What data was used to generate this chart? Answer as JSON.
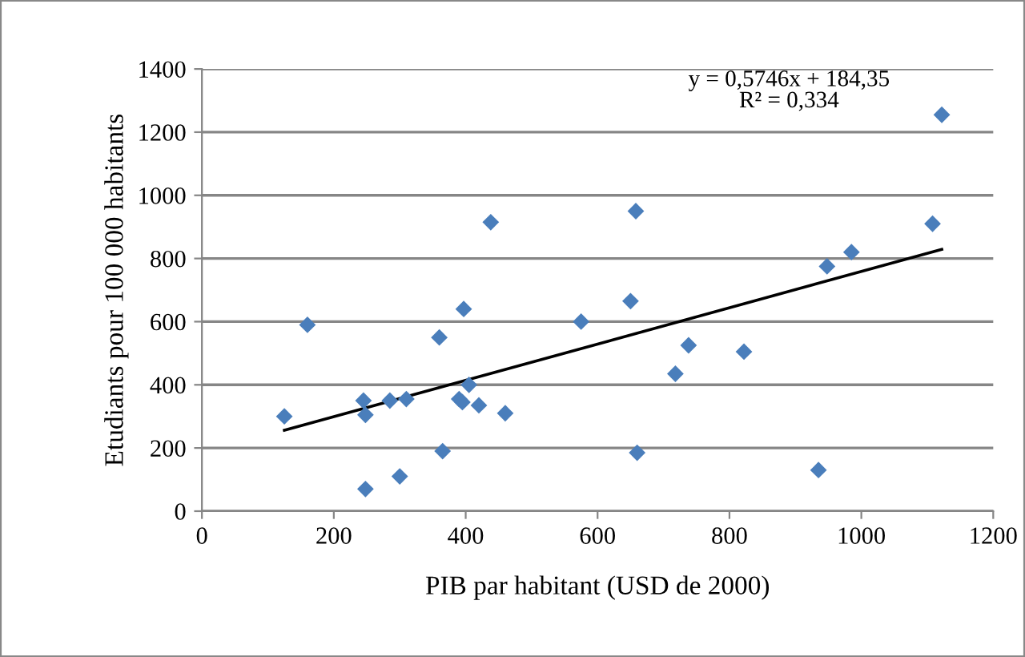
{
  "chart_data": {
    "type": "scatter",
    "xlabel": "PIB par habitant (USD de 2000)",
    "ylabel": "Etudiants pour 100 000 habitants",
    "xlim": [
      0,
      1200
    ],
    "xticks": [
      0,
      200,
      400,
      600,
      800,
      1000,
      1200
    ],
    "ylim": [
      0,
      1400
    ],
    "yticks": [
      0,
      200,
      400,
      600,
      800,
      1000,
      1200,
      1400
    ],
    "grid": "y",
    "legend": false,
    "annotations": [
      "y = 0,5746x + 184,35\nR² = 0,334"
    ],
    "series": [
      {
        "marker": "diamond",
        "color": "#4a7ebb",
        "x": [
          125,
          160,
          245,
          248,
          248,
          285,
          300,
          310,
          360,
          365,
          390,
          395,
          397,
          405,
          420,
          438,
          460,
          575,
          650,
          658,
          660,
          718,
          738,
          822,
          935,
          948,
          985,
          1108,
          1122
        ],
        "values": [
          300,
          590,
          350,
          305,
          70,
          350,
          110,
          355,
          550,
          190,
          355,
          345,
          640,
          400,
          335,
          915,
          310,
          600,
          665,
          950,
          185,
          435,
          525,
          505,
          130,
          775,
          820,
          910,
          1255
        ]
      },
      {
        "type": "line",
        "marker": "none",
        "color": "#000000",
        "x": [
          125,
          1122
        ],
        "values": [
          256,
          829
        ]
      }
    ]
  }
}
